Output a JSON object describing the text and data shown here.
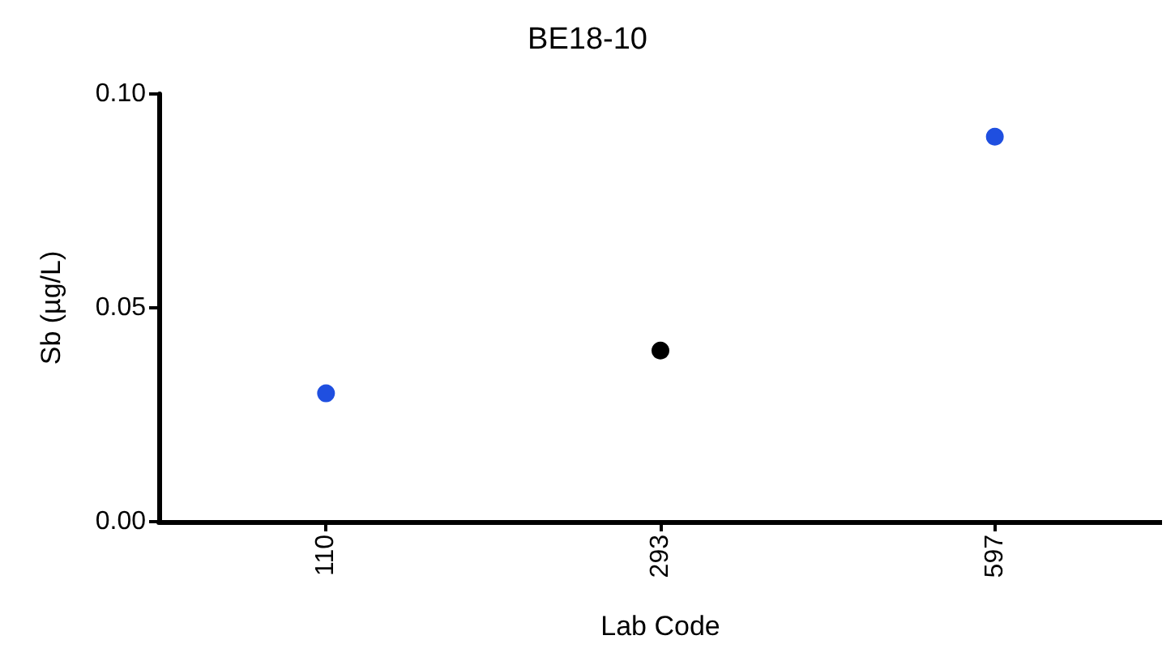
{
  "chart_data": {
    "type": "scatter",
    "title": "BE18-10",
    "xlabel": "Lab Code",
    "ylabel": "Sb (µg/L)",
    "categories": [
      "110",
      "293",
      "597"
    ],
    "series": [
      {
        "color": "#1f4fe0",
        "values": [
          0.03,
          null,
          0.09
        ]
      },
      {
        "color": "#000000",
        "values": [
          null,
          0.04,
          null
        ]
      }
    ],
    "ylim": [
      0,
      0.1
    ],
    "yticks": [
      {
        "value": 0,
        "label": "0.00"
      },
      {
        "value": 0.05,
        "label": "0.05"
      },
      {
        "value": 0.1,
        "label": "0.10"
      }
    ],
    "grid": false,
    "marker": "circle"
  }
}
